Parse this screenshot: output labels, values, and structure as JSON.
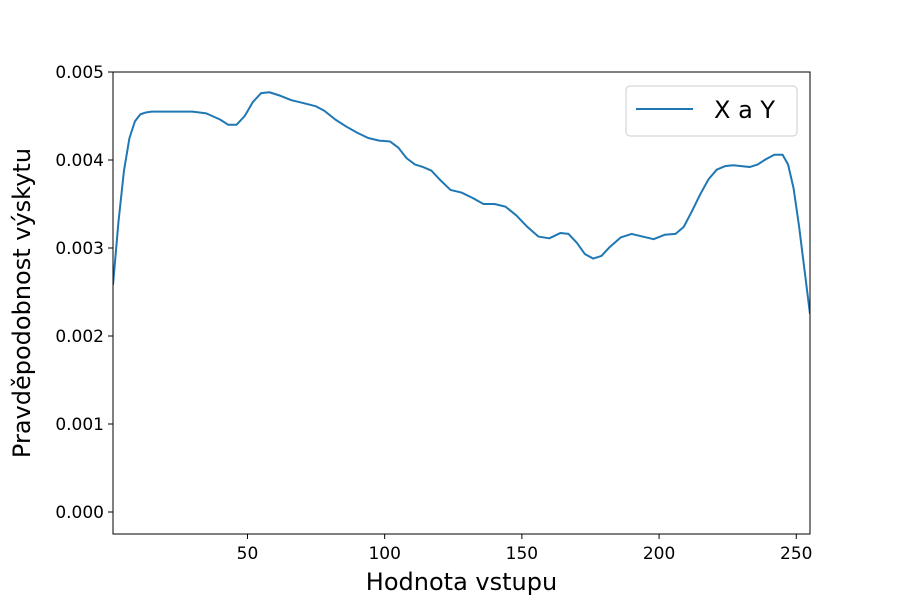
{
  "chart_data": {
    "type": "line",
    "title": "",
    "xlabel": "Hodnota vstupu",
    "ylabel": "Pravděpodobnost výskytu",
    "xlim": [
      1,
      255
    ],
    "ylim": [
      -0.00025,
      0.005
    ],
    "x_ticks": [
      50,
      100,
      150,
      200,
      250
    ],
    "x_tick_labels": [
      "50",
      "100",
      "150",
      "200",
      "250"
    ],
    "y_ticks": [
      0,
      0.001,
      0.002,
      0.003,
      0.004,
      0.005
    ],
    "y_tick_labels": [
      "0.000",
      "0.001",
      "0.002",
      "0.003",
      "0.004",
      "0.005"
    ],
    "grid": false,
    "legend_position": "top-right",
    "series": [
      {
        "name": "X a Y",
        "color": "#1f77b4",
        "x": [
          1,
          3,
          5,
          7,
          9,
          11,
          13,
          15,
          20,
          25,
          30,
          35,
          40,
          43,
          46,
          49,
          52,
          55,
          58,
          62,
          66,
          70,
          75,
          78,
          82,
          86,
          90,
          94,
          98,
          102,
          105,
          108,
          111,
          114,
          117,
          120,
          124,
          128,
          132,
          136,
          140,
          144,
          148,
          152,
          156,
          160,
          164,
          167,
          170,
          173,
          176,
          179,
          182,
          186,
          190,
          194,
          198,
          202,
          206,
          209,
          212,
          215,
          218,
          221,
          224,
          227,
          230,
          233,
          236,
          239,
          242,
          245,
          247,
          249,
          251,
          253,
          255
        ],
        "y": [
          0.00258,
          0.0033,
          0.00388,
          0.00425,
          0.00444,
          0.00452,
          0.00454,
          0.00455,
          0.00455,
          0.00455,
          0.00455,
          0.00453,
          0.00446,
          0.0044,
          0.0044,
          0.0045,
          0.00466,
          0.00476,
          0.00477,
          0.00473,
          0.00468,
          0.00465,
          0.00461,
          0.00456,
          0.00446,
          0.00438,
          0.00431,
          0.00425,
          0.00422,
          0.00421,
          0.00414,
          0.00402,
          0.00395,
          0.00392,
          0.00388,
          0.00378,
          0.00366,
          0.00363,
          0.00357,
          0.0035,
          0.0035,
          0.00347,
          0.00337,
          0.00324,
          0.00313,
          0.00311,
          0.00317,
          0.00316,
          0.00306,
          0.00293,
          0.00288,
          0.00291,
          0.00301,
          0.00312,
          0.00316,
          0.00313,
          0.0031,
          0.00315,
          0.00316,
          0.00324,
          0.00342,
          0.00361,
          0.00378,
          0.00389,
          0.00393,
          0.00394,
          0.00393,
          0.00392,
          0.00395,
          0.00401,
          0.00406,
          0.00406,
          0.00395,
          0.00368,
          0.00325,
          0.00275,
          0.00225
        ]
      }
    ]
  }
}
